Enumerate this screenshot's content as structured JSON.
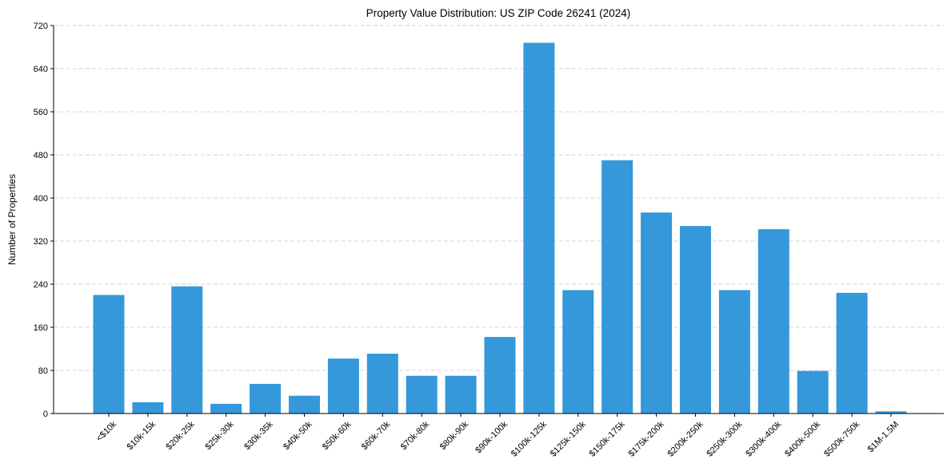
{
  "chart_data": {
    "type": "bar",
    "title": "Property Value Distribution: US ZIP Code 26241 (2024)",
    "xlabel": "",
    "ylabel": "Number of Properties",
    "categories": [
      "<$10k",
      "$10k-15k",
      "$20k-25k",
      "$25k-30k",
      "$30k-35k",
      "$40k-50k",
      "$50k-60k",
      "$60k-70k",
      "$70k-80k",
      "$80k-90k",
      "$90k-100k",
      "$100k-125k",
      "$125k-150k",
      "$150k-175k",
      "$175k-200k",
      "$200k-250k",
      "$250k-300k",
      "$300k-400k",
      "$400k-500k",
      "$500k-750k",
      "$1M-1.5M"
    ],
    "values": [
      220,
      21,
      236,
      18,
      55,
      33,
      102,
      111,
      70,
      70,
      142,
      688,
      229,
      470,
      373,
      348,
      229,
      342,
      79,
      224,
      4
    ],
    "yticks": [
      0,
      80,
      160,
      240,
      320,
      400,
      480,
      560,
      640,
      720
    ],
    "ylim": [
      0,
      720
    ],
    "grid": "y",
    "bar_color": "#3498db"
  }
}
